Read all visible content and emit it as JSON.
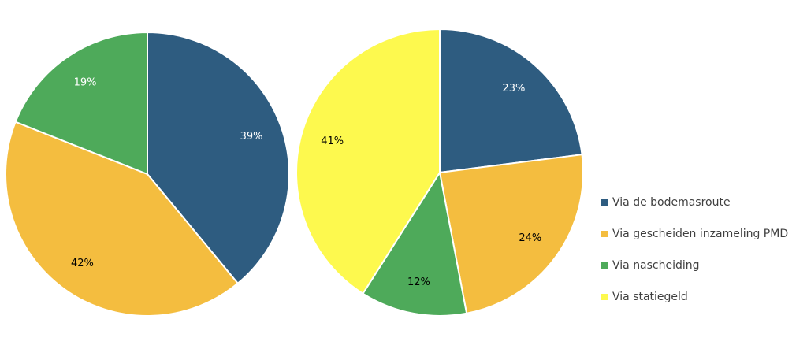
{
  "chart_data": [
    {
      "type": "pie",
      "values": [
        39,
        42,
        19,
        null
      ],
      "value_labels": [
        "39%",
        "42%",
        "19%",
        null
      ],
      "label_colors": [
        "#ffffff",
        "#000000",
        "#ffffff",
        null
      ]
    },
    {
      "type": "pie",
      "values": [
        23,
        24,
        12,
        41
      ],
      "value_labels": [
        "23%",
        "24%",
        "12%",
        "41%"
      ],
      "label_colors": [
        "#ffffff",
        "#000000",
        "#000000",
        "#000000"
      ]
    }
  ],
  "legend": {
    "labels": [
      "Via de bodemasroute",
      "Via gescheiden inzameling PMD",
      "Via nascheiding",
      "Via statiegeld"
    ],
    "colors": [
      "#2e5c80",
      "#f4bd3f",
      "#4eaa5a",
      "#fdf94e"
    ],
    "position": "right"
  }
}
